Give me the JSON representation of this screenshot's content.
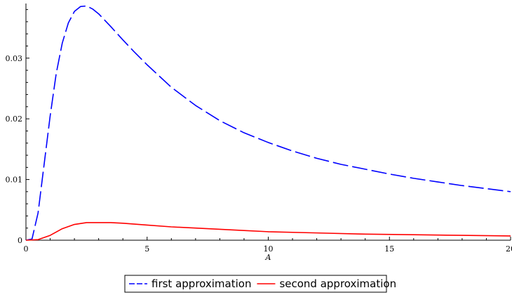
{
  "chart_data": {
    "type": "line",
    "title": "",
    "xlabel": "A",
    "ylabel": "",
    "xlim": [
      0,
      20
    ],
    "ylim": [
      0,
      0.039
    ],
    "grid": false,
    "legend_position": "bottom-center",
    "x_ticks": [
      0,
      5,
      10,
      15,
      20
    ],
    "x_tick_labels": [
      "0",
      "5",
      "10",
      "15",
      "20"
    ],
    "y_ticks": [
      0,
      0.01,
      0.02,
      0.03
    ],
    "y_tick_labels": [
      "0",
      "0.01",
      "0.02",
      "0.03"
    ],
    "series": [
      {
        "name": "first approximation",
        "color": "#0000ff",
        "dash": "long-dash",
        "x": [
          0,
          0.25,
          0.5,
          0.75,
          1.0,
          1.25,
          1.5,
          1.75,
          2.0,
          2.25,
          2.5,
          2.75,
          3.0,
          3.5,
          4.0,
          4.5,
          5.0,
          6.0,
          7.0,
          8.0,
          9.0,
          10.0,
          11.0,
          12.0,
          13.0,
          14.0,
          15.0,
          16.0,
          17.0,
          18.0,
          19.0,
          20.0
        ],
        "y": [
          0,
          0.0002,
          0.0045,
          0.0125,
          0.0205,
          0.0275,
          0.0325,
          0.0358,
          0.0377,
          0.0385,
          0.0386,
          0.0381,
          0.0373,
          0.0352,
          0.033,
          0.0309,
          0.0289,
          0.0252,
          0.0222,
          0.0197,
          0.0177,
          0.0161,
          0.0147,
          0.0135,
          0.0125,
          0.0117,
          0.0109,
          0.0102,
          0.0096,
          0.009,
          0.0085,
          0.008
        ]
      },
      {
        "name": "second approximation",
        "color": "#ff0000",
        "dash": "solid",
        "x": [
          0,
          0.5,
          1.0,
          1.5,
          2.0,
          2.5,
          3.0,
          3.5,
          4.0,
          5.0,
          6.0,
          7.0,
          8.0,
          9.0,
          10.0,
          12.0,
          14.0,
          16.0,
          18.0,
          20.0
        ],
        "y": [
          0,
          0.0001,
          0.0008,
          0.0019,
          0.0026,
          0.0029,
          0.0029,
          0.0029,
          0.0028,
          0.0025,
          0.0022,
          0.002,
          0.0018,
          0.0016,
          0.0014,
          0.0012,
          0.001,
          0.0009,
          0.0008,
          0.0007
        ]
      }
    ]
  }
}
